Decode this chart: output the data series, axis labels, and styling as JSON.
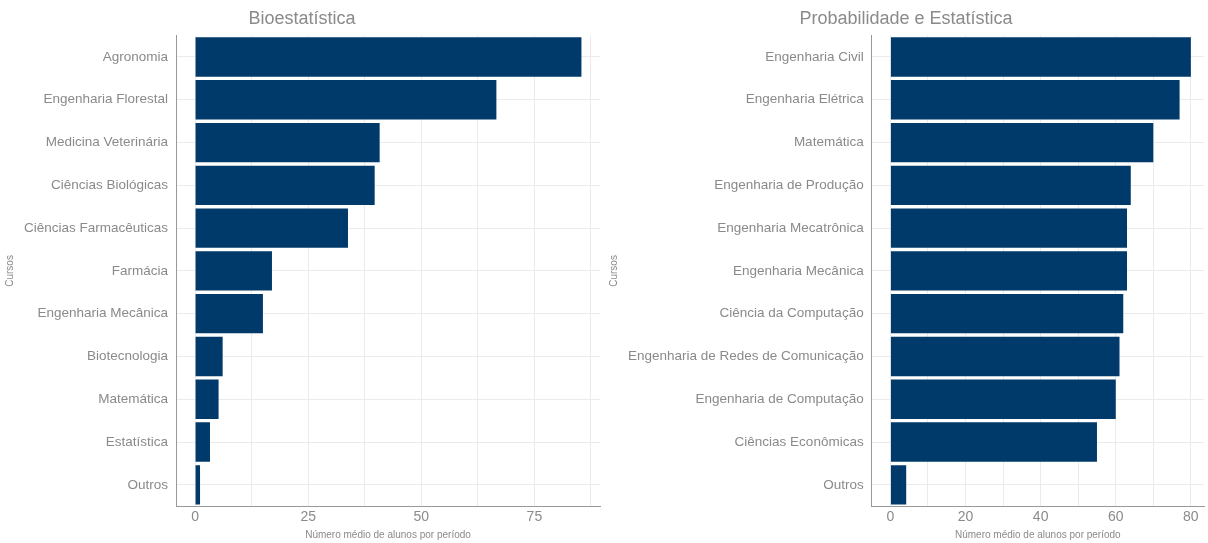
{
  "chart_data": [
    {
      "type": "bar",
      "orientation": "horizontal",
      "title": "Bioestatística",
      "xlabel": "Número médio de alunos por período",
      "ylabel": "Cursos",
      "categories": [
        "Agronomia",
        "Engenharia Florestal",
        "Medicina Veterinária",
        "Ciências Biológicas",
        "Ciências Farmacêuticas",
        "Farmácia",
        "Engenharia Mecânica",
        "Biotecnologia",
        "Matemática",
        "Estatística",
        "Outros"
      ],
      "values": [
        85.4,
        66.6,
        40.8,
        39.7,
        33.8,
        17,
        15,
        6.1,
        5.2,
        3.3,
        1.1
      ],
      "color": "#003a6a",
      "xlim": [
        -4.2,
        89.5
      ],
      "xticks": [
        0,
        {
          "value": 12.5,
          "label": null
        },
        25,
        {
          "value": 37.5,
          "label": null
        },
        50,
        {
          "value": 62.5,
          "label": null
        },
        75,
        {
          "value": 87.5,
          "label": null
        }
      ],
      "grid": true
    },
    {
      "type": "bar",
      "orientation": "horizontal",
      "title": "Probabilidade e Estatística",
      "xlabel": "Número médio de alunos por período",
      "ylabel": "Cursos",
      "categories": [
        "Engenharia Civil",
        "Engenharia Elétrica",
        "Matemática",
        "Engenharia de Produção",
        "Engenharia Mecatrônica",
        "Engenharia Mecânica",
        "Ciência da Computação",
        "Engenharia de Redes de Comunicação",
        "Engenharia de Computação",
        "Ciências Econômicas",
        "Outros"
      ],
      "values": [
        80,
        77,
        70,
        64,
        63,
        63,
        62,
        61,
        60,
        55,
        4.2
      ],
      "color": "#003a6a",
      "xlim": [
        -5,
        83.5
      ],
      "xticks": [
        0,
        {
          "value": 10,
          "label": null
        },
        20,
        {
          "value": 30,
          "label": null
        },
        40,
        {
          "value": 50,
          "label": null
        },
        60,
        {
          "value": 70,
          "label": null
        },
        80
      ],
      "grid": true
    }
  ]
}
